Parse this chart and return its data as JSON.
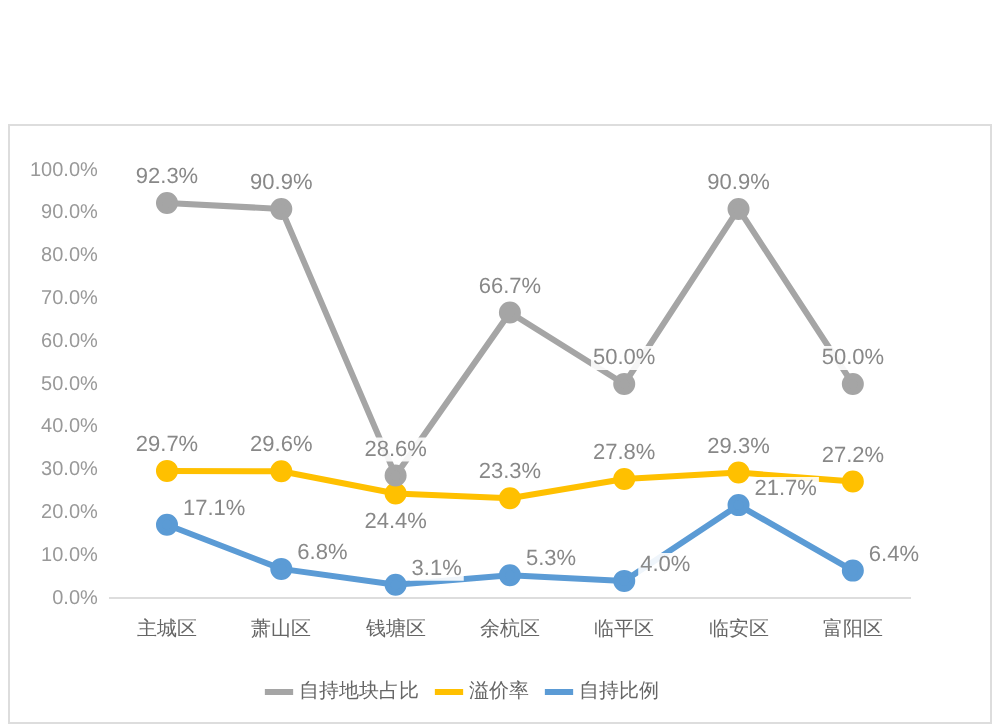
{
  "chart_data": {
    "type": "line",
    "categories": [
      "主城区",
      "萧山区",
      "钱塘区",
      "余杭区",
      "临平区",
      "临安区",
      "富阳区"
    ],
    "series": [
      {
        "name": "自持地块占比",
        "color": "#a5a5a5",
        "values": [
          92.3,
          90.9,
          28.6,
          66.7,
          50.0,
          90.9,
          50.0
        ],
        "value_labels": [
          "92.3%",
          "90.9%",
          "28.6%",
          "66.7%",
          "50.0%",
          "90.9%",
          "50.0%"
        ]
      },
      {
        "name": "溢价率",
        "color": "#ffc000",
        "values": [
          29.7,
          29.6,
          24.4,
          23.3,
          27.8,
          29.3,
          27.2
        ],
        "value_labels": [
          "29.7%",
          "29.6%",
          "24.4%",
          "23.3%",
          "27.8%",
          "29.3%",
          "27.2%"
        ]
      },
      {
        "name": "自持比例",
        "color": "#5b9bd5",
        "values": [
          17.1,
          6.8,
          3.1,
          5.3,
          4.0,
          21.7,
          6.4
        ],
        "value_labels": [
          "17.1%",
          "6.8%",
          "3.1%",
          "5.3%",
          "4.0%",
          "21.7%",
          "6.4%"
        ]
      }
    ],
    "ylim": [
      0,
      100
    ],
    "yticks": [
      {
        "value": 0,
        "label": "0.0%"
      },
      {
        "value": 10,
        "label": "10.0%"
      },
      {
        "value": 20,
        "label": "20.0%"
      },
      {
        "value": 30,
        "label": "30.0%"
      },
      {
        "value": 40,
        "label": "40.0%"
      },
      {
        "value": 50,
        "label": "50.0%"
      },
      {
        "value": 60,
        "label": "60.0%"
      },
      {
        "value": 70,
        "label": "70.0%"
      },
      {
        "value": 80,
        "label": "80.0%"
      },
      {
        "value": 90,
        "label": "90.0%"
      },
      {
        "value": 100,
        "label": "100.0%"
      }
    ],
    "grid": false,
    "legend": "bottom",
    "marker": "circle",
    "line_style": "solid"
  }
}
